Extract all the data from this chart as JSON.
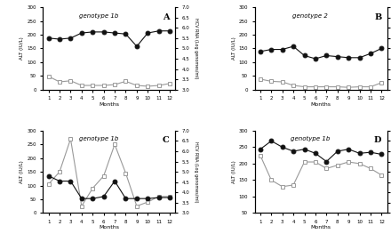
{
  "panel_A": {
    "title": "genotype 1b",
    "label": "A",
    "months": [
      1,
      2,
      3,
      4,
      5,
      6,
      7,
      8,
      9,
      10,
      11,
      12
    ],
    "alt": [
      48,
      28,
      32,
      15,
      15,
      15,
      18,
      30,
      15,
      12,
      15,
      22
    ],
    "hcv": [
      5.5,
      5.45,
      5.5,
      5.75,
      5.8,
      5.8,
      5.75,
      5.7,
      5.1,
      5.75,
      5.85,
      5.85
    ]
  },
  "panel_B": {
    "title": "genotype 2",
    "label": "B",
    "months": [
      1,
      2,
      3,
      4,
      5,
      6,
      7,
      8,
      9,
      10,
      11,
      12
    ],
    "alt": [
      38,
      30,
      28,
      15,
      10,
      10,
      10,
      10,
      8,
      10,
      10,
      25
    ],
    "hcv": [
      4.85,
      4.95,
      4.95,
      5.1,
      4.65,
      4.5,
      4.65,
      4.6,
      4.55,
      4.55,
      4.75,
      5.0
    ]
  },
  "panel_C": {
    "title": "genotype 1b",
    "label": "C",
    "months": [
      1,
      2,
      3,
      4,
      5,
      6,
      7,
      8,
      9,
      10,
      11,
      12
    ],
    "alt": [
      105,
      150,
      270,
      25,
      90,
      135,
      250,
      145,
      25,
      40,
      60,
      60
    ],
    "hcv": [
      4.8,
      4.55,
      4.55,
      3.7,
      3.7,
      3.8,
      4.55,
      3.7,
      3.7,
      3.7,
      3.75,
      3.75
    ]
  },
  "panel_D": {
    "title": "genotype 1b",
    "label": "D",
    "months": [
      1,
      2,
      3,
      4,
      5,
      6,
      7,
      8,
      9,
      10,
      11,
      12
    ],
    "alt": [
      225,
      150,
      130,
      135,
      205,
      205,
      185,
      195,
      205,
      200,
      185,
      165
    ],
    "hcv": [
      6.1,
      6.5,
      6.2,
      6.0,
      6.1,
      5.9,
      5.5,
      6.0,
      6.1,
      5.9,
      5.95,
      5.85
    ]
  },
  "alt_color": "#999999",
  "hcv_color": "#111111",
  "alt_marker": "s",
  "hcv_marker": "o",
  "alt_ylim": [
    0,
    300
  ],
  "alt_yticks": [
    0,
    50,
    100,
    150,
    200,
    250,
    300
  ],
  "hcv_ylim": [
    3.0,
    7.0
  ],
  "hcv_yticks": [
    3.0,
    3.5,
    4.0,
    4.5,
    5.0,
    5.5,
    6.0,
    6.5,
    7.0
  ],
  "panel_D_alt_ylim": [
    50,
    300
  ],
  "panel_D_alt_yticks": [
    50,
    100,
    150,
    200,
    250,
    300
  ],
  "xlabel": "Months",
  "ylabel_left": "ALT (IU/L)",
  "ylabel_right": "HCV RNA (Log genomes/ml)"
}
